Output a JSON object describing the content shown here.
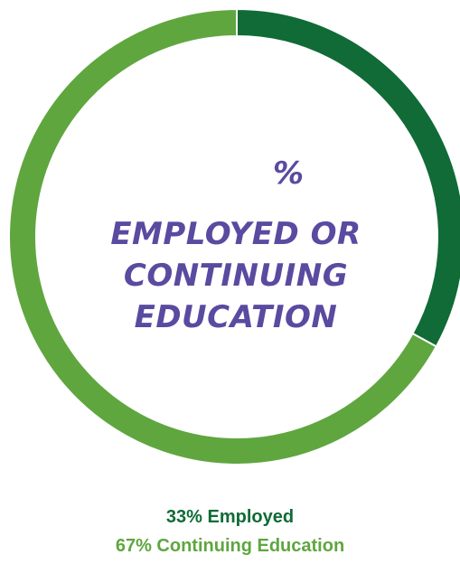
{
  "chart_data": {
    "type": "pie",
    "variant": "donut",
    "center_text": {
      "value": "%",
      "headline_lines": [
        "EMPLOYED OR",
        "CONTINUING",
        "EDUCATION"
      ]
    },
    "slices": [
      {
        "label": "Employed",
        "value": 33,
        "color": "#106b36"
      },
      {
        "label": "Continuing Education",
        "value": 67,
        "color": "#5fa63f"
      }
    ],
    "legend_lines": [
      "33% Employed",
      "67% Continuing Education"
    ],
    "legend_placement": "bottom"
  }
}
